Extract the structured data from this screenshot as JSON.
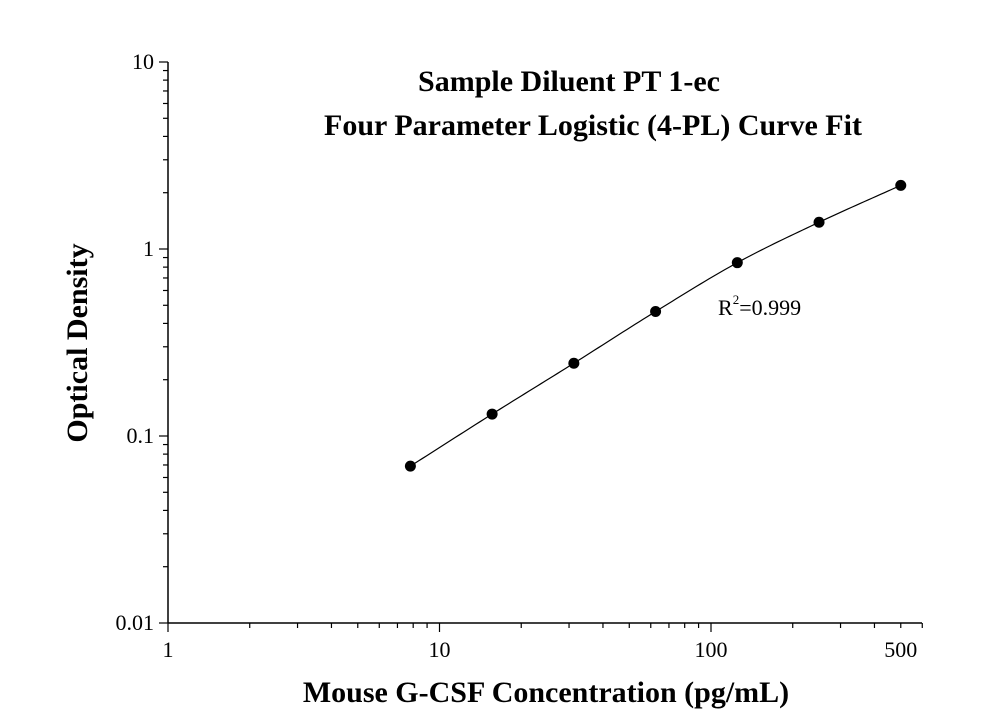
{
  "chart_data": {
    "type": "scatter",
    "title_line1": "Sample Diluent PT 1-ec",
    "title_line2": "Four Parameter Logistic (4-PL) Curve Fit",
    "xlabel": "Mouse G-CSF Concentration (pg/mL)",
    "ylabel": "Optical Density",
    "x_scale": "log",
    "y_scale": "log",
    "xlim": [
      1,
      500
    ],
    "ylim": [
      0.01,
      10
    ],
    "x_tick_labels": [
      {
        "value": 1,
        "label": "1"
      },
      {
        "value": 10,
        "label": "10"
      },
      {
        "value": 100,
        "label": "100"
      },
      {
        "value": 500,
        "label": "500"
      }
    ],
    "y_tick_labels": [
      {
        "value": 0.01,
        "label": "0.01"
      },
      {
        "value": 0.1,
        "label": "0.1"
      },
      {
        "value": 1,
        "label": "1"
      },
      {
        "value": 10,
        "label": "10"
      }
    ],
    "grid": false,
    "points": [
      {
        "x": 7.8125,
        "y": 0.069
      },
      {
        "x": 15.625,
        "y": 0.131
      },
      {
        "x": 31.25,
        "y": 0.245
      },
      {
        "x": 62.5,
        "y": 0.463
      },
      {
        "x": 125,
        "y": 0.845
      },
      {
        "x": 250,
        "y": 1.39
      },
      {
        "x": 500,
        "y": 2.19
      }
    ],
    "annotation": {
      "r_label": "R",
      "r_superscript": "2",
      "r_value": "=0.999"
    },
    "colors": {
      "points": "#000000",
      "curve": "#000000",
      "axes": "#000000"
    }
  }
}
